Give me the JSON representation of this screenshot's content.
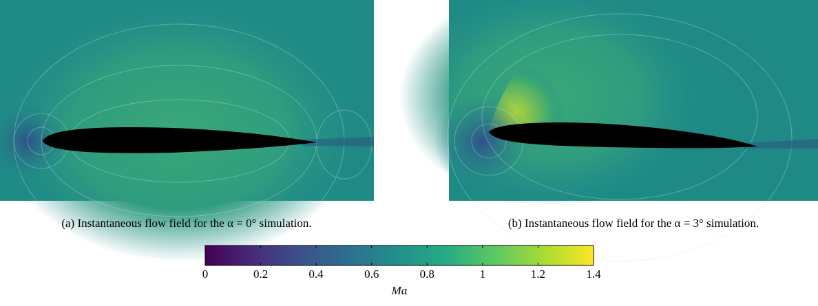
{
  "figures": [
    {
      "caption": "(a) Instantaneous flow field for the α = 0° simulation."
    },
    {
      "caption": "(b) Instantaneous flow field for the α = 3° simulation."
    }
  ],
  "colorbar": {
    "label": "Ma",
    "lim": [
      0,
      1.4
    ],
    "ticks": [
      0,
      0.2,
      0.4,
      0.6,
      0.8,
      1,
      1.2,
      1.4
    ]
  }
}
